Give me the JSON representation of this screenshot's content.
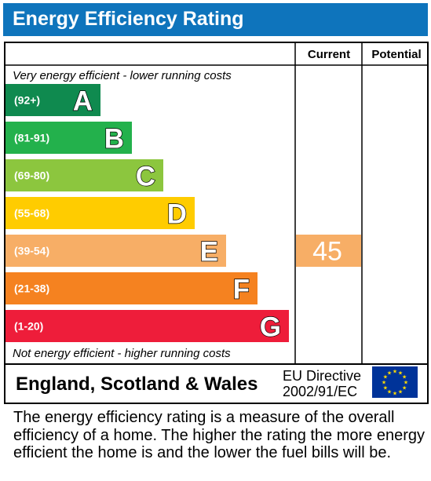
{
  "header": {
    "title": "Energy Efficiency Rating"
  },
  "chart_data": {
    "type": "bar",
    "title": "Energy Efficiency Rating",
    "columns": [
      "Current",
      "Potential"
    ],
    "top_caption": "Very energy efficient - lower running costs",
    "bottom_caption": "Not energy efficient - higher running costs",
    "bands": [
      {
        "range": "(92+)",
        "letter": "A",
        "color": "#0f8a4f"
      },
      {
        "range": "(81-91)",
        "letter": "B",
        "color": "#23b14c"
      },
      {
        "range": "(69-80)",
        "letter": "C",
        "color": "#8cc63e"
      },
      {
        "range": "(55-68)",
        "letter": "D",
        "color": "#ffcc00"
      },
      {
        "range": "(39-54)",
        "letter": "E",
        "color": "#f7ae66"
      },
      {
        "range": "(21-38)",
        "letter": "F",
        "color": "#f58220"
      },
      {
        "range": "(1-20)",
        "letter": "G",
        "color": "#ee1d3a"
      }
    ],
    "current": {
      "value": 45,
      "band": "E",
      "color": "#f7ae66"
    },
    "potential": null
  },
  "footer": {
    "region": "England, Scotland & Wales",
    "directive_line1": "EU Directive",
    "directive_line2": "2002/91/EC",
    "flag_color": "#003399",
    "star_color": "#ffdd00"
  },
  "description": "The energy efficiency rating is a measure of the overall efficiency of a home. The higher the rating the more energy efficient the home is and the lower the fuel bills will be."
}
